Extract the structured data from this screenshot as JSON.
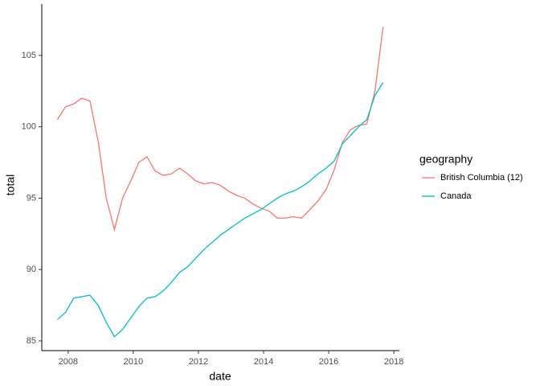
{
  "chart_data": {
    "type": "line",
    "x_label": "date",
    "y_label": "total",
    "legend_title": "geography",
    "legend": "right",
    "x": [
      2007.67,
      2007.92,
      2008.17,
      2008.42,
      2008.67,
      2008.92,
      2009.17,
      2009.42,
      2009.67,
      2009.92,
      2010.17,
      2010.42,
      2010.67,
      2010.92,
      2011.17,
      2011.42,
      2011.67,
      2011.92,
      2012.17,
      2012.42,
      2012.67,
      2012.92,
      2013.17,
      2013.42,
      2013.67,
      2013.92,
      2014.17,
      2014.42,
      2014.67,
      2014.92,
      2015.17,
      2015.42,
      2015.67,
      2015.92,
      2016.17,
      2016.42,
      2016.67,
      2016.92,
      2017.17,
      2017.42,
      2017.67
    ],
    "series": [
      {
        "name": "British Columbia (12)",
        "color": "#F8766D",
        "values": [
          100.5,
          101.4,
          101.6,
          102.0,
          101.8,
          99.0,
          95.0,
          92.8,
          95.0,
          96.2,
          97.5,
          97.9,
          96.9,
          96.6,
          96.7,
          97.1,
          96.7,
          96.2,
          96.0,
          96.1,
          95.9,
          95.5,
          95.2,
          95.0,
          94.6,
          94.3,
          94.1,
          93.6,
          93.6,
          93.7,
          93.6,
          94.2,
          94.8,
          95.6,
          97.0,
          98.9,
          99.8,
          100.1,
          100.2,
          102.5,
          107.0
        ]
      },
      {
        "name": "Canada",
        "color": "#00BFC4",
        "values": [
          86.5,
          87.0,
          88.0,
          88.1,
          88.2,
          87.5,
          86.3,
          85.3,
          85.8,
          86.6,
          87.4,
          88.0,
          88.1,
          88.5,
          89.1,
          89.8,
          90.2,
          90.8,
          91.4,
          91.9,
          92.4,
          92.8,
          93.2,
          93.6,
          93.9,
          94.2,
          94.6,
          95.0,
          95.3,
          95.5,
          95.8,
          96.2,
          96.7,
          97.1,
          97.6,
          98.8,
          99.4,
          100.0,
          100.5,
          102.2,
          103.1
        ]
      }
    ],
    "xlim": [
      2007.19,
      2018.17
    ],
    "xticks": [
      2008,
      2010,
      2012,
      2014,
      2016,
      2018
    ],
    "ylim": [
      84.32,
      108.6
    ],
    "yticks": [
      85,
      90,
      95,
      100,
      105
    ],
    "grid": false
  }
}
